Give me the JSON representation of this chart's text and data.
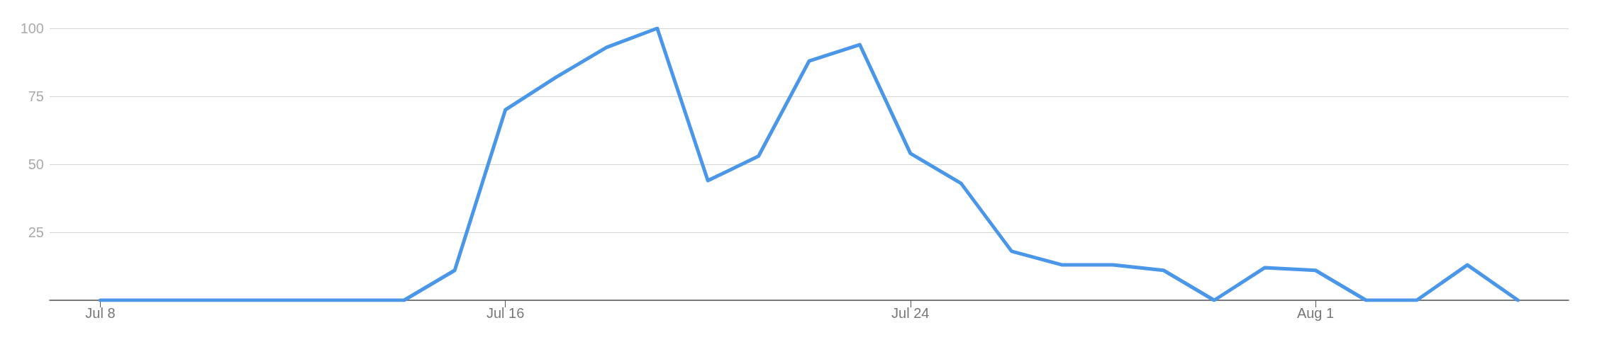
{
  "chart_data": {
    "type": "line",
    "x": [
      "--07-08",
      "--07-09",
      "--07-10",
      "--07-11",
      "--07-12",
      "--07-13",
      "--07-14",
      "--07-15",
      "--07-16",
      "--07-17",
      "--07-18",
      "--07-19",
      "--07-20",
      "--07-21",
      "--07-22",
      "--07-23",
      "--07-24",
      "--07-25",
      "--07-26",
      "--07-27",
      "--07-28",
      "--07-29",
      "--07-30",
      "--07-31",
      "--08-01",
      "--08-02",
      "--08-03",
      "--08-04",
      "--08-05"
    ],
    "series": [
      {
        "color": "#4a96e8",
        "values": [
          0,
          0,
          0,
          0,
          0,
          0,
          0,
          11,
          70,
          82,
          93,
          100,
          44,
          53,
          88,
          94,
          54,
          43,
          18,
          13,
          13,
          11,
          0,
          12,
          11,
          0,
          0,
          13,
          0
        ]
      }
    ],
    "xlim": [
      "--07-07",
      "--08-06"
    ],
    "xticks": [
      {
        "value": "--07-08",
        "label": "Jul 8"
      },
      {
        "value": "--07-16",
        "label": "Jul 16"
      },
      {
        "value": "--07-24",
        "label": "Jul 24"
      },
      {
        "value": "--08-01",
        "label": "Aug 1"
      }
    ],
    "ylim": [
      0,
      100
    ],
    "yticks": [
      {
        "value": 0,
        "label": null
      },
      25,
      50,
      75,
      100
    ],
    "grid": "y",
    "marker": "none",
    "line_style": "solid"
  }
}
